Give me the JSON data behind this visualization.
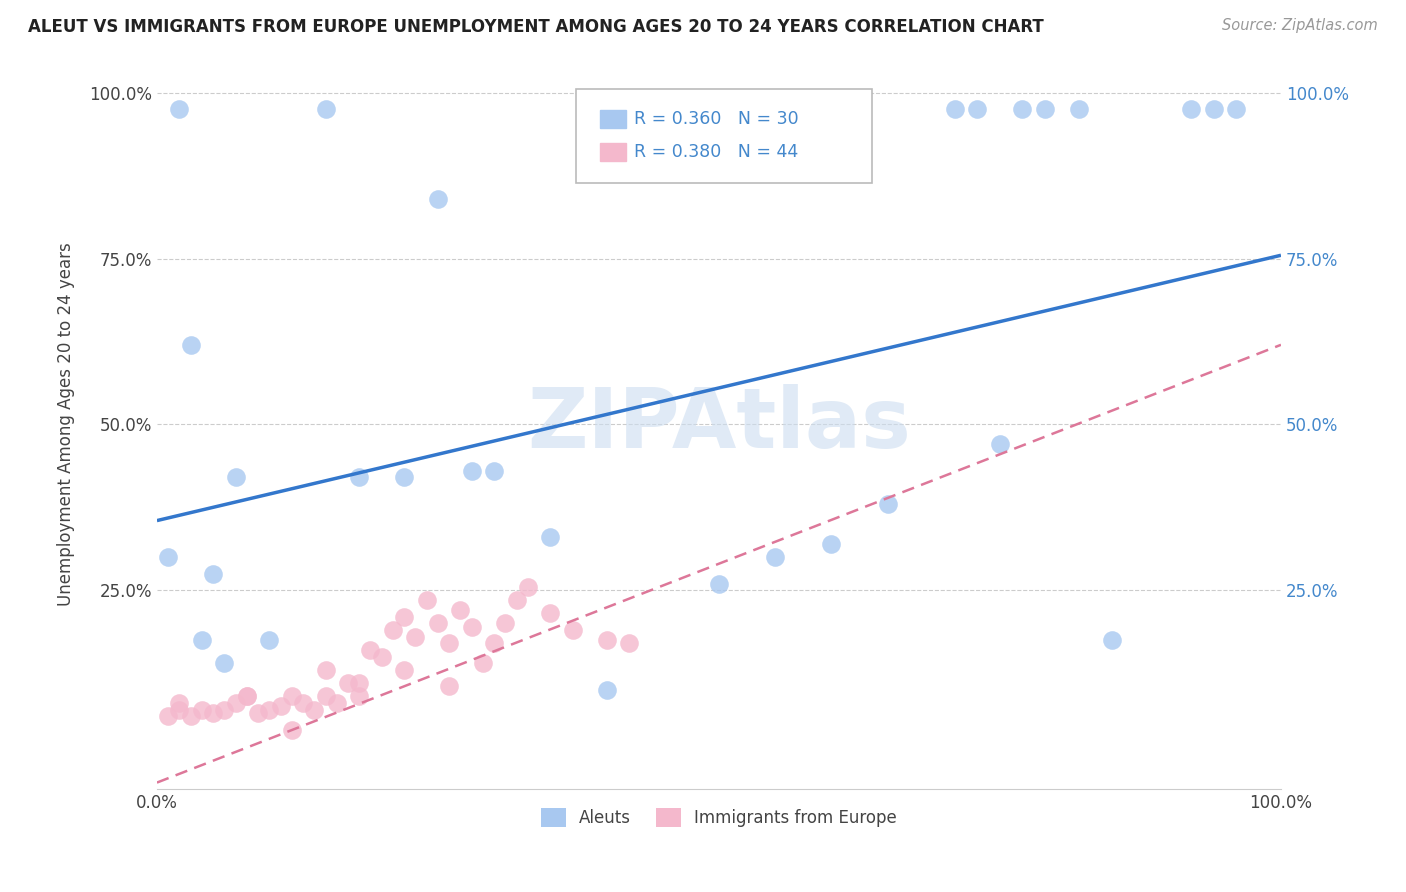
{
  "title": "ALEUT VS IMMIGRANTS FROM EUROPE UNEMPLOYMENT AMONG AGES 20 TO 24 YEARS CORRELATION CHART",
  "source": "Source: ZipAtlas.com",
  "ylabel": "Unemployment Among Ages 20 to 24 years",
  "legend_label1": "Aleuts",
  "legend_label2": "Immigrants from Europe",
  "R1": "0.360",
  "N1": "30",
  "R2": "0.380",
  "N2": "44",
  "aleut_color": "#a8c8f0",
  "immigrant_color": "#f4b8cc",
  "aleut_line_color": "#3377cc",
  "immigrant_line_color": "#dd7799",
  "background_color": "#ffffff",
  "watermark_color": "#ccddf0",
  "right_tick_color": "#4488cc",
  "legend_text_color": "#4488cc",
  "aleut_x": [
    0.02,
    0.15,
    0.25,
    0.03,
    0.05,
    0.07,
    0.01,
    0.04,
    0.28,
    0.3,
    0.6,
    0.65,
    0.71,
    0.73,
    0.77,
    0.79,
    0.82,
    0.1,
    0.18,
    0.22,
    0.35,
    0.55,
    0.75,
    0.85,
    0.92,
    0.94,
    0.96,
    0.5,
    0.4,
    0.06
  ],
  "aleut_y": [
    0.975,
    0.975,
    0.84,
    0.62,
    0.275,
    0.42,
    0.3,
    0.175,
    0.43,
    0.43,
    0.32,
    0.38,
    0.975,
    0.975,
    0.975,
    0.975,
    0.975,
    0.175,
    0.42,
    0.42,
    0.33,
    0.3,
    0.47,
    0.175,
    0.975,
    0.975,
    0.975,
    0.26,
    0.1,
    0.14
  ],
  "imm_x": [
    0.01,
    0.02,
    0.02,
    0.03,
    0.04,
    0.05,
    0.06,
    0.07,
    0.08,
    0.09,
    0.1,
    0.11,
    0.12,
    0.13,
    0.14,
    0.15,
    0.16,
    0.17,
    0.18,
    0.19,
    0.2,
    0.21,
    0.22,
    0.23,
    0.24,
    0.25,
    0.26,
    0.27,
    0.28,
    0.29,
    0.3,
    0.31,
    0.32,
    0.33,
    0.35,
    0.37,
    0.4,
    0.42,
    0.26,
    0.15,
    0.08,
    0.22,
    0.18,
    0.12
  ],
  "imm_y": [
    0.06,
    0.07,
    0.08,
    0.06,
    0.07,
    0.065,
    0.07,
    0.08,
    0.09,
    0.065,
    0.07,
    0.075,
    0.09,
    0.08,
    0.07,
    0.09,
    0.08,
    0.11,
    0.09,
    0.16,
    0.15,
    0.19,
    0.21,
    0.18,
    0.235,
    0.2,
    0.17,
    0.22,
    0.195,
    0.14,
    0.17,
    0.2,
    0.235,
    0.255,
    0.215,
    0.19,
    0.175,
    0.17,
    0.105,
    0.13,
    0.09,
    0.13,
    0.11,
    0.04
  ],
  "aleut_line_x0": 0.0,
  "aleut_line_y0": 0.355,
  "aleut_line_x1": 1.0,
  "aleut_line_y1": 0.755,
  "imm_line_x0": 0.0,
  "imm_line_y0": -0.04,
  "imm_line_x1": 1.0,
  "imm_line_y1": 0.62,
  "xlim": [
    0,
    1
  ],
  "ylim": [
    -0.05,
    1.05
  ],
  "yticks": [
    0.25,
    0.5,
    0.75,
    1.0
  ],
  "ytick_labels": [
    "25.0%",
    "50.0%",
    "75.0%",
    "100.0%"
  ],
  "xticks": [
    0.0,
    1.0
  ],
  "xtick_labels": [
    "0.0%",
    "100.0%"
  ]
}
